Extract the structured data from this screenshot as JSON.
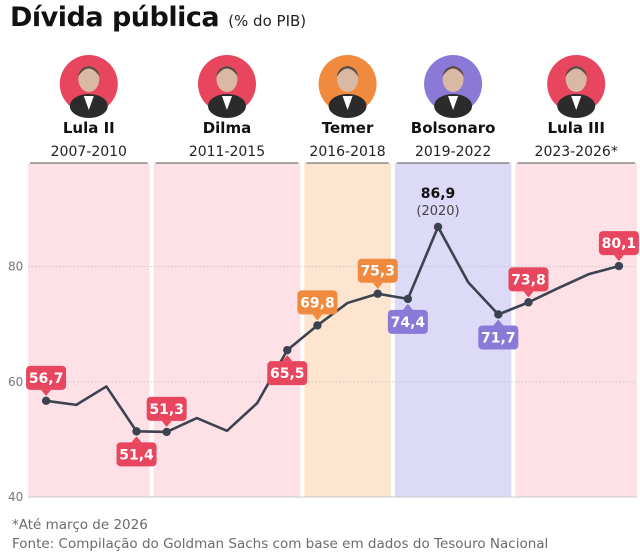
{
  "header": {
    "title": "Dívida pública",
    "subtitle": "(% do PIB)"
  },
  "footer": {
    "note": "*Até março de 2026",
    "source": "Fonte: Compilação do Goldman Sachs com base em dados do Tesouro Nacional"
  },
  "colors": {
    "line": "#3b4350",
    "red_label": "#e8455e",
    "orange_label": "#f08a3e",
    "purple_label": "#8a79d6",
    "pink_band": "#fde1e6",
    "orange_band": "#fde5d0",
    "purple_band": "#dcdaf6",
    "grid": "#c8c8c8"
  },
  "chart_data": {
    "type": "line",
    "title": "Dívida pública",
    "ylabel": "(% do PIB)",
    "ylim": [
      40,
      98
    ],
    "yticks": [
      40,
      60,
      80
    ],
    "xlim": [
      2006.4,
      2026.6
    ],
    "x": [
      2007,
      2008,
      2009,
      2010,
      2011,
      2012,
      2013,
      2014,
      2015,
      2016,
      2017,
      2018,
      2019,
      2020,
      2021,
      2022,
      2023,
      2024,
      2025,
      2026
    ],
    "series": [
      {
        "values": [
          56.7,
          56.0,
          59.2,
          51.4,
          51.3,
          53.7,
          51.5,
          56.3,
          65.5,
          69.8,
          73.7,
          75.3,
          74.4,
          86.9,
          77.3,
          71.7,
          73.8,
          76.3,
          78.7,
          80.1
        ]
      }
    ],
    "periods": [
      {
        "name": "Lula II",
        "years": "2007-2010",
        "start": 2006.4,
        "end": 2010.5,
        "band": "pink",
        "avatar": "pink"
      },
      {
        "name": "Dilma",
        "years": "2011-2015",
        "start": 2010.5,
        "end": 2015.5,
        "band": "pink",
        "avatar": "pink"
      },
      {
        "name": "Temer",
        "years": "2016-2018",
        "start": 2015.5,
        "end": 2018.5,
        "band": "orange",
        "avatar": "orange"
      },
      {
        "name": "Bolsonaro",
        "years": "2019-2022",
        "start": 2018.5,
        "end": 2022.5,
        "band": "purple",
        "avatar": "purple"
      },
      {
        "name": "Lula III",
        "years": "2023-2026*",
        "start": 2022.5,
        "end": 2026.6,
        "band": "pink",
        "avatar": "pink"
      }
    ],
    "data_labels": [
      {
        "x": 2007,
        "y": 56.7,
        "text": "56,7",
        "style": "red",
        "pos": "above"
      },
      {
        "x": 2010,
        "y": 51.4,
        "text": "51,4",
        "style": "red",
        "pos": "below"
      },
      {
        "x": 2011,
        "y": 51.3,
        "text": "51,3",
        "style": "red",
        "pos": "above"
      },
      {
        "x": 2015,
        "y": 65.5,
        "text": "65,5",
        "style": "red",
        "pos": "below"
      },
      {
        "x": 2016,
        "y": 69.8,
        "text": "69,8",
        "style": "orange",
        "pos": "above"
      },
      {
        "x": 2018,
        "y": 75.3,
        "text": "75,3",
        "style": "orange",
        "pos": "above"
      },
      {
        "x": 2019,
        "y": 74.4,
        "text": "74,4",
        "style": "purple",
        "pos": "below"
      },
      {
        "x": 2022,
        "y": 71.7,
        "text": "71,7",
        "style": "purple",
        "pos": "below"
      },
      {
        "x": 2023,
        "y": 73.8,
        "text": "73,8",
        "style": "red",
        "pos": "above"
      },
      {
        "x": 2026,
        "y": 80.1,
        "text": "80,1",
        "style": "red",
        "pos": "above"
      },
      {
        "x": 2020,
        "y": 86.9,
        "text": "86,9",
        "sub": "(2020)",
        "style": "plain",
        "pos": "above"
      }
    ]
  }
}
